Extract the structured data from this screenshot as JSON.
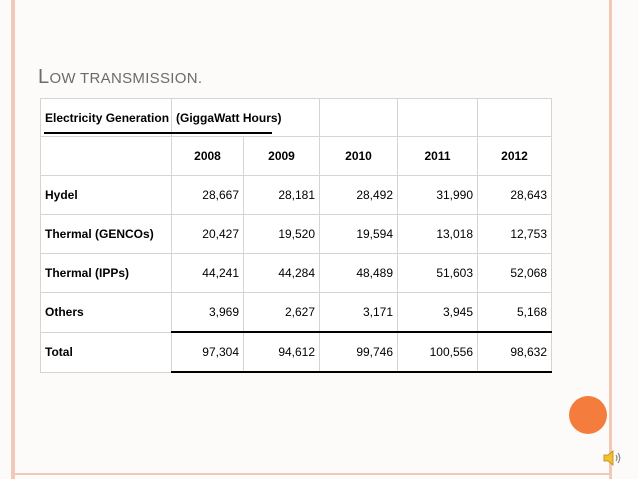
{
  "slide": {
    "title_first": "L",
    "title_rest": "OW TRANSMISSION."
  },
  "table": {
    "heading_label": "Electricity Generation",
    "heading_unit": "(GiggaWatt Hours)",
    "years": [
      "2008",
      "2009",
      "2010",
      "2011",
      "2012"
    ],
    "rows": [
      {
        "label": "Hydel",
        "values": [
          "28,667",
          "28,181",
          "28,492",
          "31,990",
          "28,643"
        ]
      },
      {
        "label": "Thermal (GENCOs)",
        "values": [
          "20,427",
          "19,520",
          "19,594",
          "13,018",
          "12,753"
        ]
      },
      {
        "label": "Thermal (IPPs)",
        "values": [
          "44,241",
          "44,284",
          "48,489",
          "51,603",
          "52,068"
        ]
      },
      {
        "label": "Others",
        "values": [
          "3,969",
          "2,627",
          "3,171",
          "3,945",
          "5,168"
        ]
      },
      {
        "label": "Total",
        "values": [
          "97,304",
          "94,612",
          "99,746",
          "100,556",
          "98,632"
        ]
      }
    ]
  },
  "icons": {
    "decoration": "orange-circle",
    "audio": "speaker-icon"
  },
  "colors": {
    "accent": "#f47c3c",
    "border": "#f2c9b6",
    "title": "#6b6b6b"
  }
}
